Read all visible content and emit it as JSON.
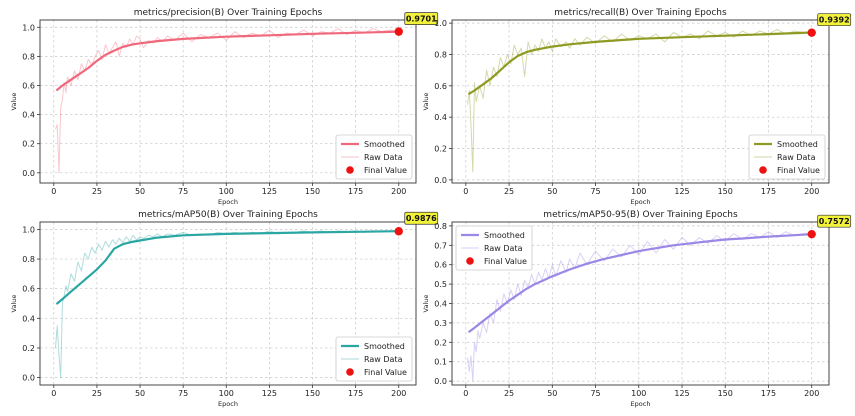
{
  "chart_data": [
    {
      "type": "line",
      "title": "metrics/precision(B) Over Training Epochs",
      "xlabel": "Epoch",
      "ylabel": "Value",
      "xlim": [
        -8,
        210
      ],
      "ylim": [
        -0.07,
        1.05
      ],
      "xticks": [
        "0",
        "25",
        "50",
        "75",
        "100",
        "125",
        "150",
        "175",
        "200"
      ],
      "yticks": [
        "0.0",
        "0.2",
        "0.4",
        "0.6",
        "0.8",
        "1.0"
      ],
      "grid": true,
      "legend_position": "bottom-right",
      "color": "#f0687b",
      "legend": {
        "smoothed": "Smoothed",
        "raw": "Raw Data",
        "final": "Final Value"
      },
      "final_label": "0.9701",
      "final_value": 0.9701,
      "smoothed": {
        "x": [
          2,
          5,
          10,
          15,
          20,
          25,
          30,
          35,
          40,
          45,
          50,
          60,
          75,
          100,
          125,
          150,
          175,
          200
        ],
        "y": [
          0.57,
          0.6,
          0.64,
          0.68,
          0.72,
          0.77,
          0.81,
          0.84,
          0.865,
          0.88,
          0.89,
          0.905,
          0.92,
          0.935,
          0.945,
          0.955,
          0.962,
          0.97
        ]
      },
      "raw": {
        "x": [
          1,
          2,
          3,
          4,
          5,
          6,
          7,
          8,
          10,
          12,
          14,
          16,
          18,
          20,
          22,
          24,
          26,
          28,
          30,
          32,
          34,
          36,
          38,
          40,
          42,
          44,
          46,
          48,
          50,
          52,
          55,
          58,
          60,
          63,
          66,
          70,
          75,
          80,
          85,
          90,
          95,
          100,
          105,
          110,
          115,
          120,
          125,
          130,
          135,
          140,
          145,
          150,
          155,
          160,
          165,
          170,
          175,
          180,
          185,
          190,
          195,
          200
        ],
        "y": [
          0.3,
          0.33,
          0.0,
          0.45,
          0.5,
          0.62,
          0.55,
          0.66,
          0.6,
          0.7,
          0.64,
          0.75,
          0.7,
          0.78,
          0.74,
          0.8,
          0.84,
          0.78,
          0.88,
          0.82,
          0.86,
          0.9,
          0.8,
          0.89,
          0.86,
          0.92,
          0.88,
          0.94,
          0.92,
          0.86,
          0.91,
          0.89,
          0.93,
          0.9,
          0.94,
          0.91,
          0.96,
          0.9,
          0.95,
          0.93,
          0.96,
          0.91,
          0.97,
          0.93,
          0.96,
          0.94,
          0.98,
          0.93,
          0.96,
          0.95,
          0.98,
          0.94,
          0.97,
          0.96,
          0.99,
          0.95,
          0.98,
          0.96,
          0.99,
          0.97,
          0.98,
          0.97
        ]
      }
    },
    {
      "type": "line",
      "title": "metrics/recall(B) Over Training Epochs",
      "xlabel": "Epoch",
      "ylabel": "Value",
      "xlim": [
        -8,
        210
      ],
      "ylim": [
        -0.02,
        1.02
      ],
      "xticks": [
        "0",
        "25",
        "50",
        "75",
        "100",
        "125",
        "150",
        "175",
        "200"
      ],
      "yticks": [
        "0.0",
        "0.2",
        "0.4",
        "0.6",
        "0.8",
        "1.0"
      ],
      "grid": true,
      "legend_position": "bottom-right",
      "color": "#8f9a22",
      "legend": {
        "smoothed": "Smoothed",
        "raw": "Raw Data",
        "final": "Final Value"
      },
      "final_label": "0.9392",
      "final_value": 0.9392,
      "smoothed": {
        "x": [
          2,
          5,
          10,
          15,
          20,
          25,
          30,
          35,
          40,
          45,
          50,
          60,
          75,
          100,
          125,
          150,
          175,
          200
        ],
        "y": [
          0.55,
          0.57,
          0.61,
          0.65,
          0.7,
          0.75,
          0.79,
          0.815,
          0.83,
          0.84,
          0.85,
          0.865,
          0.88,
          0.9,
          0.91,
          0.92,
          0.93,
          0.94
        ]
      },
      "raw": {
        "x": [
          1,
          2,
          3,
          4,
          5,
          6,
          7,
          8,
          10,
          12,
          14,
          16,
          18,
          20,
          22,
          24,
          26,
          28,
          30,
          32,
          34,
          36,
          38,
          40,
          42,
          44,
          46,
          48,
          50,
          52,
          55,
          58,
          60,
          63,
          66,
          70,
          75,
          80,
          85,
          90,
          95,
          100,
          105,
          110,
          115,
          120,
          125,
          130,
          135,
          140,
          145,
          150,
          155,
          160,
          165,
          170,
          175,
          180,
          185,
          190,
          195,
          200
        ],
        "y": [
          0.48,
          0.57,
          0.35,
          0.05,
          0.62,
          0.5,
          0.55,
          0.6,
          0.52,
          0.7,
          0.6,
          0.72,
          0.66,
          0.78,
          0.72,
          0.8,
          0.74,
          0.86,
          0.8,
          0.84,
          0.66,
          0.88,
          0.8,
          0.86,
          0.82,
          0.9,
          0.84,
          0.88,
          0.82,
          0.9,
          0.85,
          0.88,
          0.84,
          0.9,
          0.86,
          0.91,
          0.87,
          0.92,
          0.88,
          0.93,
          0.89,
          0.92,
          0.9,
          0.93,
          0.88,
          0.94,
          0.91,
          0.93,
          0.9,
          0.95,
          0.92,
          0.94,
          0.91,
          0.95,
          0.92,
          0.95,
          0.93,
          0.96,
          0.93,
          0.95,
          0.94,
          0.94
        ]
      }
    },
    {
      "type": "line",
      "title": "metrics/mAP50(B) Over Training Epochs",
      "xlabel": "Epoch",
      "ylabel": "Value",
      "xlim": [
        -8,
        210
      ],
      "ylim": [
        -0.05,
        1.05
      ],
      "xticks": [
        "0",
        "25",
        "50",
        "75",
        "100",
        "125",
        "150",
        "175",
        "200"
      ],
      "yticks": [
        "0.0",
        "0.2",
        "0.4",
        "0.6",
        "0.8",
        "1.0"
      ],
      "grid": true,
      "legend_position": "bottom-right",
      "color": "#2aa6a3",
      "legend": {
        "smoothed": "Smoothed",
        "raw": "Raw Data",
        "final": "Final Value"
      },
      "final_label": "0.9876",
      "final_value": 0.9876,
      "smoothed": {
        "x": [
          2,
          5,
          10,
          15,
          20,
          25,
          30,
          35,
          40,
          45,
          50,
          60,
          75,
          100,
          125,
          150,
          175,
          200
        ],
        "y": [
          0.5,
          0.53,
          0.58,
          0.63,
          0.68,
          0.73,
          0.79,
          0.87,
          0.9,
          0.915,
          0.925,
          0.945,
          0.96,
          0.97,
          0.975,
          0.98,
          0.984,
          0.988
        ]
      },
      "raw": {
        "x": [
          1,
          2,
          3,
          4,
          5,
          6,
          7,
          8,
          10,
          12,
          14,
          16,
          18,
          20,
          22,
          24,
          26,
          28,
          30,
          32,
          34,
          36,
          38,
          40,
          42,
          44,
          46,
          48,
          50,
          52,
          55,
          58,
          60,
          63,
          66,
          70,
          75,
          80,
          85,
          90,
          95,
          100,
          105,
          110,
          115,
          120,
          125,
          130,
          135,
          140,
          145,
          150,
          155,
          160,
          165,
          170,
          175,
          180,
          185,
          190,
          195,
          200
        ],
        "y": [
          0.2,
          0.35,
          0.15,
          0.0,
          0.5,
          0.55,
          0.62,
          0.58,
          0.7,
          0.65,
          0.78,
          0.72,
          0.84,
          0.8,
          0.88,
          0.84,
          0.9,
          0.86,
          0.92,
          0.88,
          0.93,
          0.9,
          0.94,
          0.91,
          0.95,
          0.92,
          0.96,
          0.93,
          0.95,
          0.94,
          0.96,
          0.95,
          0.97,
          0.95,
          0.97,
          0.96,
          0.98,
          0.96,
          0.97,
          0.96,
          0.98,
          0.97,
          0.98,
          0.97,
          0.98,
          0.97,
          0.99,
          0.97,
          0.98,
          0.98,
          0.99,
          0.98,
          0.99,
          0.98,
          0.99,
          0.98,
          0.99,
          0.98,
          0.99,
          0.99,
          0.99,
          0.99
        ]
      }
    },
    {
      "type": "line",
      "title": "metrics/mAP50-95(B) Over Training Epochs",
      "xlabel": "Epoch",
      "ylabel": "Value",
      "xlim": [
        -8,
        210
      ],
      "ylim": [
        -0.02,
        0.82
      ],
      "xticks": [
        "0",
        "25",
        "50",
        "75",
        "100",
        "125",
        "150",
        "175",
        "200"
      ],
      "yticks": [
        "0.0",
        "0.1",
        "0.2",
        "0.3",
        "0.4",
        "0.5",
        "0.6",
        "0.7",
        "0.8"
      ],
      "grid": true,
      "legend_position": "top-left",
      "color": "#9b87e6",
      "legend": {
        "smoothed": "Smoothed",
        "raw": "Raw Data",
        "final": "Final Value"
      },
      "final_label": "0.7572",
      "final_value": 0.7572,
      "smoothed": {
        "x": [
          2,
          5,
          10,
          15,
          20,
          25,
          30,
          35,
          40,
          45,
          50,
          60,
          70,
          80,
          90,
          100,
          110,
          120,
          130,
          140,
          150,
          160,
          175,
          190,
          200
        ],
        "y": [
          0.255,
          0.275,
          0.31,
          0.345,
          0.38,
          0.415,
          0.445,
          0.475,
          0.5,
          0.52,
          0.54,
          0.575,
          0.605,
          0.63,
          0.65,
          0.67,
          0.685,
          0.7,
          0.71,
          0.72,
          0.73,
          0.735,
          0.745,
          0.752,
          0.757
        ]
      },
      "raw": {
        "x": [
          1,
          2,
          3,
          4,
          5,
          6,
          7,
          8,
          10,
          12,
          14,
          16,
          18,
          20,
          22,
          24,
          26,
          28,
          30,
          32,
          34,
          36,
          38,
          40,
          42,
          44,
          46,
          48,
          50,
          52,
          55,
          58,
          60,
          63,
          66,
          70,
          75,
          80,
          85,
          90,
          95,
          100,
          105,
          110,
          115,
          120,
          125,
          130,
          135,
          140,
          145,
          150,
          155,
          160,
          165,
          170,
          175,
          180,
          185,
          190,
          195,
          200
        ],
        "y": [
          0.12,
          0.05,
          0.13,
          0.0,
          0.2,
          0.15,
          0.26,
          0.22,
          0.3,
          0.25,
          0.35,
          0.3,
          0.42,
          0.36,
          0.45,
          0.4,
          0.47,
          0.42,
          0.5,
          0.44,
          0.52,
          0.48,
          0.55,
          0.5,
          0.56,
          0.52,
          0.58,
          0.53,
          0.6,
          0.54,
          0.62,
          0.56,
          0.63,
          0.58,
          0.66,
          0.6,
          0.67,
          0.62,
          0.68,
          0.64,
          0.7,
          0.65,
          0.72,
          0.66,
          0.73,
          0.68,
          0.74,
          0.7,
          0.74,
          0.71,
          0.75,
          0.72,
          0.76,
          0.73,
          0.76,
          0.74,
          0.77,
          0.74,
          0.77,
          0.75,
          0.76,
          0.76
        ]
      }
    }
  ]
}
